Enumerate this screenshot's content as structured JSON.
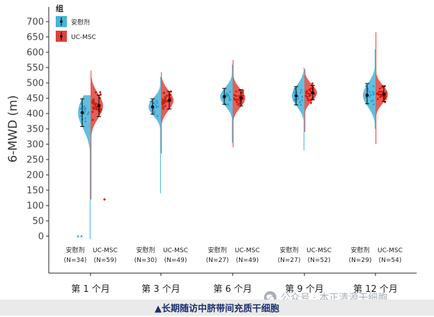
{
  "chart_data": {
    "type": "violin",
    "ylabel": "6-MWD (m)",
    "ylim": [
      -50,
      720
    ],
    "yticks": [
      0,
      50,
      100,
      150,
      200,
      250,
      300,
      350,
      400,
      450,
      500,
      550,
      600,
      650,
      700
    ],
    "legend": {
      "title": "组",
      "position": "top-left",
      "items": [
        {
          "label": "安慰剂",
          "color": "#48b3d8"
        },
        {
          "label": "UC-MSC",
          "color": "#e0423a"
        }
      ]
    },
    "groups": [
      {
        "label": "第 1 个月",
        "placebo": {
          "n_label": "(N=34)",
          "mean": 403,
          "low": 358,
          "high": 448,
          "min": -10,
          "max": 460
        },
        "ucmsc": {
          "n_label": "(N=59)",
          "mean": 425,
          "low": 390,
          "high": 460,
          "min": 120,
          "max": 540
        }
      },
      {
        "label": "第 3 个月",
        "placebo": {
          "n_label": "(N=30)",
          "mean": 422,
          "low": 398,
          "high": 448,
          "min": 140,
          "max": 520
        },
        "ucmsc": {
          "n_label": "(N=49)",
          "mean": 443,
          "low": 415,
          "high": 472,
          "min": 270,
          "max": 535
        }
      },
      {
        "label": "第 6 个月",
        "placebo": {
          "n_label": "(N=27)",
          "mean": 455,
          "low": 430,
          "high": 482,
          "min": 305,
          "max": 560
        },
        "ucmsc": {
          "n_label": "(N=49)",
          "mean": 450,
          "low": 425,
          "high": 478,
          "min": 290,
          "max": 575
        }
      },
      {
        "label": "第 9 个月",
        "placebo": {
          "n_label": "(N=27)",
          "mean": 458,
          "low": 428,
          "high": 488,
          "min": 280,
          "max": 550
        },
        "ucmsc": {
          "n_label": "(N=52)",
          "mean": 468,
          "low": 445,
          "high": 492,
          "min": 340,
          "max": 545
        }
      },
      {
        "label": "第 12 个月",
        "placebo": {
          "n_label": "(N=29)",
          "mean": 460,
          "low": 432,
          "high": 498,
          "min": 350,
          "max": 610
        },
        "ucmsc": {
          "n_label": "(N=54)",
          "mean": 463,
          "low": 440,
          "high": 490,
          "min": 300,
          "max": 665
        }
      }
    ],
    "outliers": [
      {
        "group": 0,
        "arm": "placebo",
        "y": 0
      },
      {
        "group": 0,
        "arm": "placebo",
        "y": 0
      },
      {
        "group": 0,
        "arm": "ucmsc",
        "y": 120
      }
    ],
    "colors": {
      "placebo_fill": "#48b3d8",
      "ucmsc_fill": "#e0423a",
      "placebo_dot": "#2a9bd0",
      "ucmsc_dot": "#d01c10"
    }
  },
  "caption": "▲长期随访中脐带间充质干细胞",
  "watermark": {
    "text": "公众号 · 本正清源干细胞"
  }
}
